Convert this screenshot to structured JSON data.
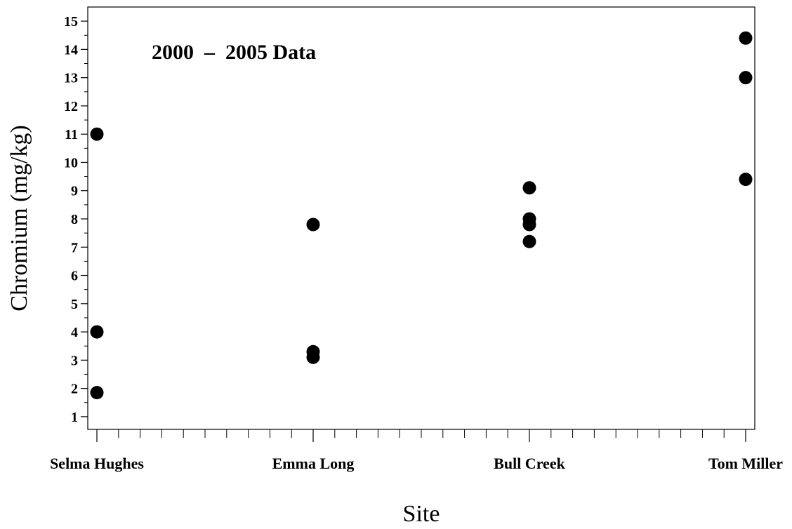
{
  "chart_data": {
    "type": "scatter",
    "title": "",
    "annotation": "2000  –  2005 Data",
    "xlabel": "Site",
    "ylabel": "Chromium (mg/kg)",
    "categories": [
      "Selma Hughes",
      "Emma Long",
      "Bull Creek",
      "Tom Miller"
    ],
    "ylim": [
      0.55,
      15.5
    ],
    "yticks": [
      1,
      2,
      3,
      4,
      5,
      6,
      7,
      8,
      9,
      10,
      11,
      12,
      13,
      14,
      15
    ],
    "grid": false,
    "legend": "none",
    "marker_color": "#000000",
    "points": [
      {
        "category": "Selma Hughes",
        "y": 11.0
      },
      {
        "category": "Selma Hughes",
        "y": 4.0
      },
      {
        "category": "Selma Hughes",
        "y": 1.85
      },
      {
        "category": "Emma Long",
        "y": 7.8
      },
      {
        "category": "Emma Long",
        "y": 3.3
      },
      {
        "category": "Emma Long",
        "y": 3.1
      },
      {
        "category": "Bull Creek",
        "y": 9.1
      },
      {
        "category": "Bull Creek",
        "y": 8.0
      },
      {
        "category": "Bull Creek",
        "y": 7.8
      },
      {
        "category": "Bull Creek",
        "y": 7.2
      },
      {
        "category": "Tom Miller",
        "y": 14.4
      },
      {
        "category": "Tom Miller",
        "y": 13.0
      },
      {
        "category": "Tom Miller",
        "y": 9.4
      }
    ]
  }
}
